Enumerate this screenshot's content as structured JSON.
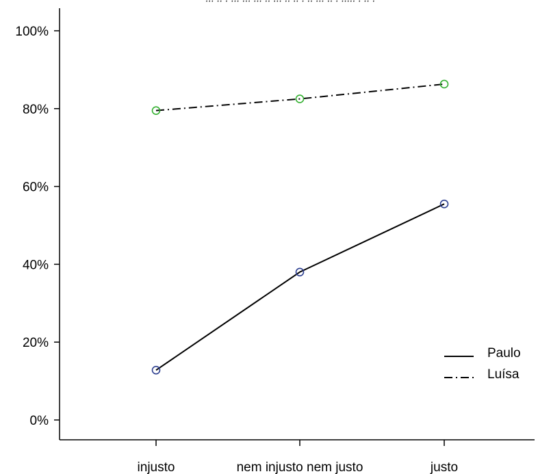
{
  "top_fragment": "··· ·· ·  ··· ···  ··· ·· ···  ·· ·· · ·· ··· ·· · ····· · ·· ·",
  "chart_data": {
    "type": "line",
    "categories": [
      "injusto",
      "nem injusto nem justo",
      "justo"
    ],
    "series": [
      {
        "name": "Paulo",
        "values": [
          12.8,
          38.0,
          55.5
        ],
        "line_style": "solid",
        "marker_color": "#2c3e8f"
      },
      {
        "name": "Luísa",
        "values": [
          79.5,
          82.5,
          86.3
        ],
        "line_style": "dashdot",
        "marker_color": "#33b030"
      }
    ],
    "ylim": [
      0,
      100
    ],
    "yticks": [
      0,
      20,
      40,
      60,
      80,
      100
    ],
    "ytick_labels": [
      "0%",
      "20%",
      "40%",
      "60%",
      "80%",
      "100%"
    ],
    "title": "",
    "xlabel": "",
    "ylabel": "",
    "grid": false,
    "legend_position": "bottom-right"
  }
}
